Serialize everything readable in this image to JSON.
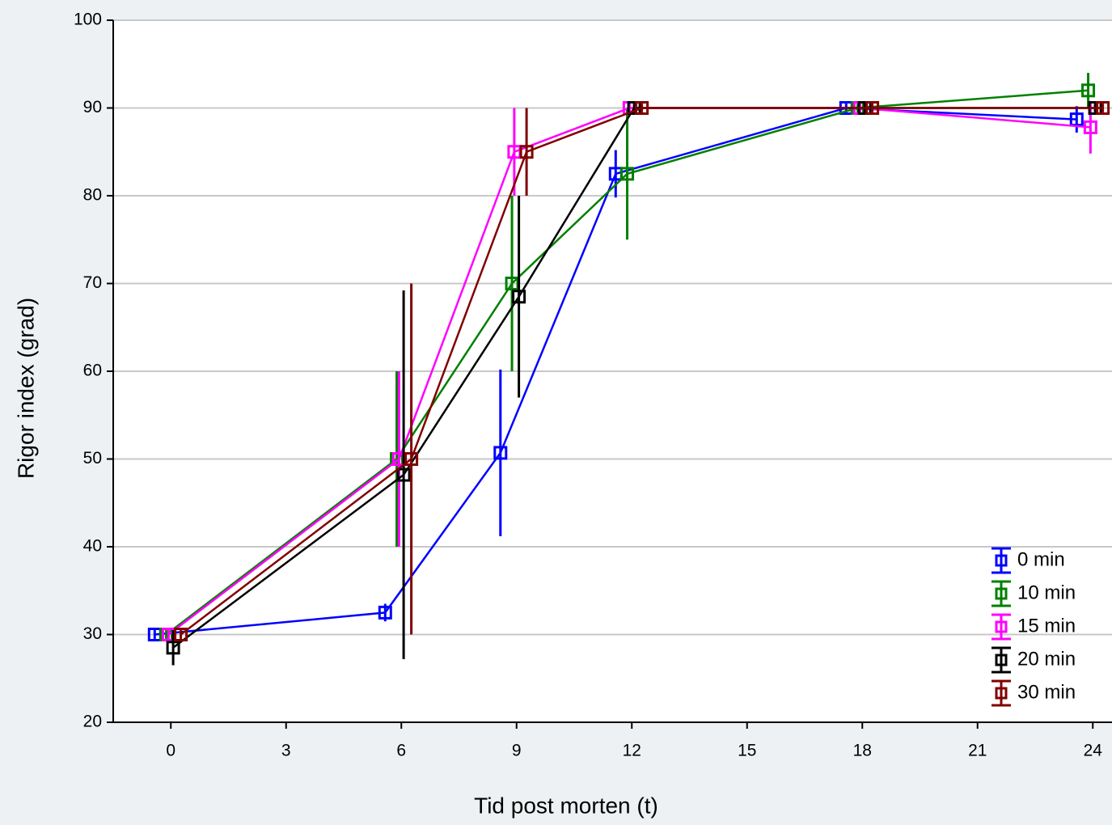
{
  "chart_data": {
    "type": "line",
    "x_label": "Tid post morten (t)",
    "y_label": "Rigor index (grad)",
    "x": [
      0,
      6,
      9,
      12,
      18,
      24
    ],
    "series": [
      {
        "name": "0 min",
        "color": "#0000ff",
        "values": [
          30,
          32.5,
          50.7,
          82.5,
          90,
          88.7
        ],
        "errors": [
          0.5,
          1,
          9.5,
          2.7,
          0.5,
          1.5
        ]
      },
      {
        "name": "10 min",
        "color": "#008000",
        "values": [
          30,
          50,
          70,
          82.5,
          90,
          92
        ],
        "errors": [
          0.5,
          10,
          10,
          7.5,
          0.5,
          2
        ]
      },
      {
        "name": "15 min",
        "color": "#ff00ff",
        "values": [
          30,
          50,
          85,
          90,
          90,
          87.8
        ],
        "errors": [
          0.5,
          10,
          5,
          0.5,
          0.5,
          3
        ]
      },
      {
        "name": "20 min",
        "color": "#000000",
        "values": [
          28.5,
          48.2,
          68.5,
          90,
          90,
          90
        ],
        "errors": [
          2,
          21,
          11.5,
          0.5,
          0.5,
          0.5
        ]
      },
      {
        "name": "30 min",
        "color": "#800000",
        "values": [
          30,
          50,
          85,
          90,
          90,
          90
        ],
        "errors": [
          0.5,
          20,
          5,
          0.5,
          0.5,
          0.5
        ]
      }
    ],
    "xlim": [
      -1.5,
      24.5
    ],
    "xticks": [
      0,
      3,
      6,
      9,
      12,
      15,
      18,
      21,
      24
    ],
    "ylim": [
      20,
      100
    ],
    "yticks": [
      20,
      30,
      40,
      50,
      60,
      70,
      80,
      90,
      100
    ],
    "grid": true,
    "legend": "lower right"
  }
}
